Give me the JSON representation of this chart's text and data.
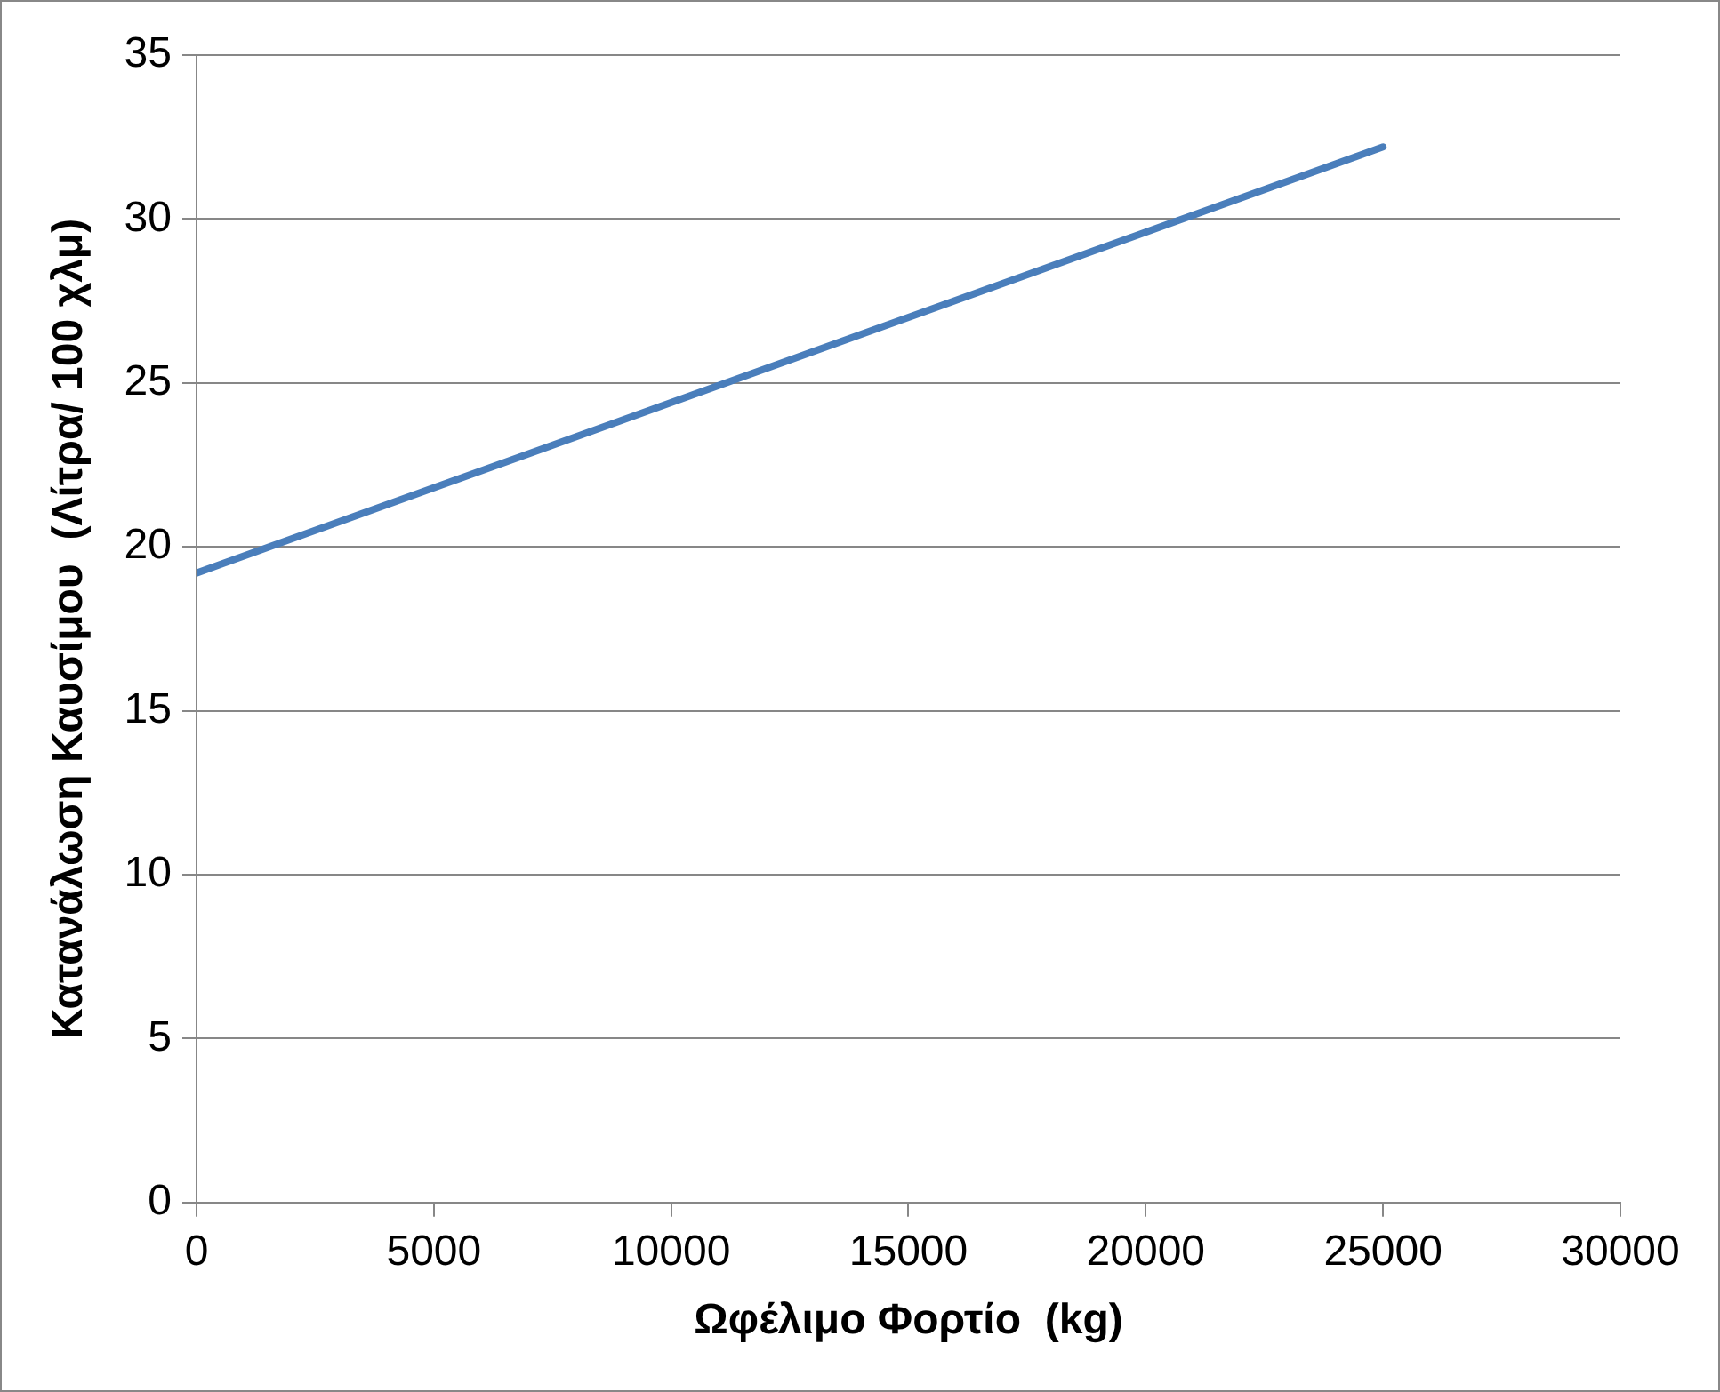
{
  "chart_data": {
    "type": "line",
    "xlabel": "Ωφέλιμο Φορτίο  (kg)",
    "ylabel": "Κατανάλωση Καυσίμου  (Λίτρα/ 100 χλμ)",
    "x": [
      0,
      25000
    ],
    "series": [
      {
        "color": "#4a7ebb",
        "values": [
          19.2,
          32.2
        ]
      }
    ],
    "xlim": [
      0,
      30000
    ],
    "xticks": [
      0,
      5000,
      10000,
      15000,
      20000,
      25000,
      30000
    ],
    "ylim": [
      0,
      35
    ],
    "yticks": [
      0,
      5,
      10,
      15,
      20,
      25,
      30,
      35
    ],
    "grid": "y",
    "legend": false,
    "marker": "none",
    "line_style": "solid"
  }
}
